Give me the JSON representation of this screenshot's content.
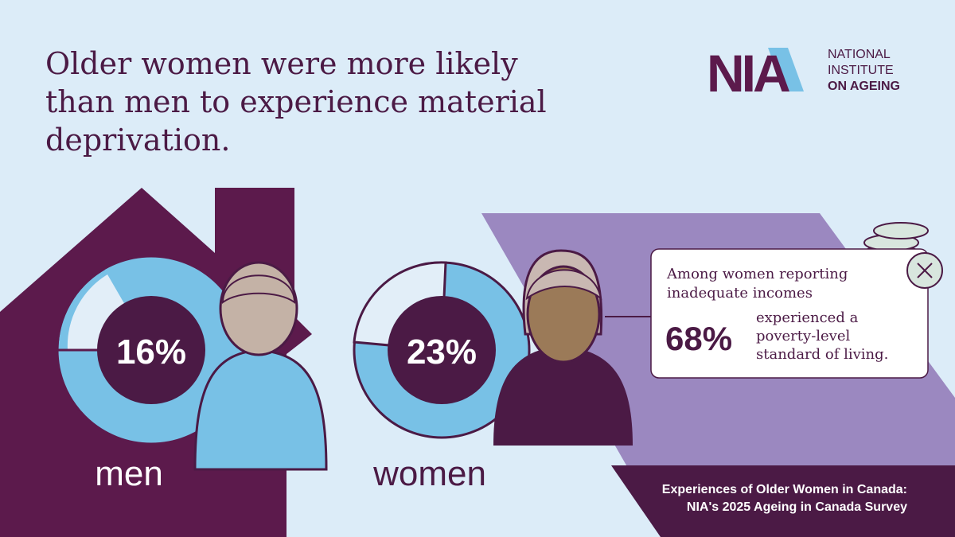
{
  "header": {
    "title_lines": [
      "Older women were more likely",
      "than men to experience material",
      "deprivation."
    ]
  },
  "logo": {
    "mark": "NIA",
    "name_lines": [
      "NATIONAL",
      "INSTITUTE",
      "ON AGEING"
    ]
  },
  "groups": [
    {
      "label": "men",
      "value": "16%"
    },
    {
      "label": "women",
      "value": "23%"
    }
  ],
  "callout": {
    "intro_lines": [
      "Among women reporting",
      "inadequate incomes"
    ],
    "stat": "68%",
    "text_lines": [
      "experienced a",
      "poverty-level",
      "standard of living."
    ]
  },
  "footer": {
    "lines": [
      "Experiences of Older Women in Canada:",
      "NIA's 2025 Ageing in Canada Survey"
    ]
  }
}
